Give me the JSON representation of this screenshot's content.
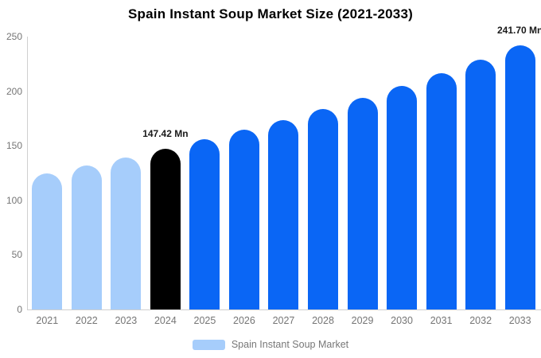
{
  "title": "Spain Instant Soup Market Size (2021-2033)",
  "legend": {
    "label": "Spain Instant Soup Market"
  },
  "colors": {
    "historical_bar": "#a6cdfb",
    "base_year_bar": "#000000",
    "forecast_bar": "#0a66f5",
    "axis_line": "#cfcfcf",
    "tick_label": "#757575",
    "title_text": "#000000",
    "annotation_text": "#1a1a1a",
    "legend_label": "#777777",
    "legend_swatch": "#a6cdfb"
  },
  "chart_data": {
    "type": "bar",
    "title": "Spain Instant Soup Market Size (2021-2033)",
    "series_name": "Spain Instant Soup Market",
    "categories": [
      "2021",
      "2022",
      "2023",
      "2024",
      "2025",
      "2026",
      "2027",
      "2028",
      "2029",
      "2030",
      "2031",
      "2032",
      "2033"
    ],
    "values": [
      125.0,
      132.1,
      139.5,
      147.42,
      155.8,
      164.5,
      173.8,
      183.7,
      194.0,
      205.0,
      216.6,
      228.8,
      241.7
    ],
    "unit": "Mn",
    "ylabel": "",
    "xlabel": "",
    "ylim": [
      0,
      250
    ],
    "y_ticks": [
      0,
      50,
      100,
      150,
      200,
      250
    ],
    "grid": false,
    "legend_position": "bottom",
    "bar_segments": {
      "historical_years": [
        "2021",
        "2022",
        "2023"
      ],
      "base_year": "2024",
      "forecast_years": [
        "2025",
        "2026",
        "2027",
        "2028",
        "2029",
        "2030",
        "2031",
        "2032",
        "2033"
      ]
    },
    "labeled_points": [
      {
        "category": "2024",
        "label": "147.42 Mn"
      },
      {
        "category": "2033",
        "label": "241.70 Mn"
      }
    ]
  }
}
